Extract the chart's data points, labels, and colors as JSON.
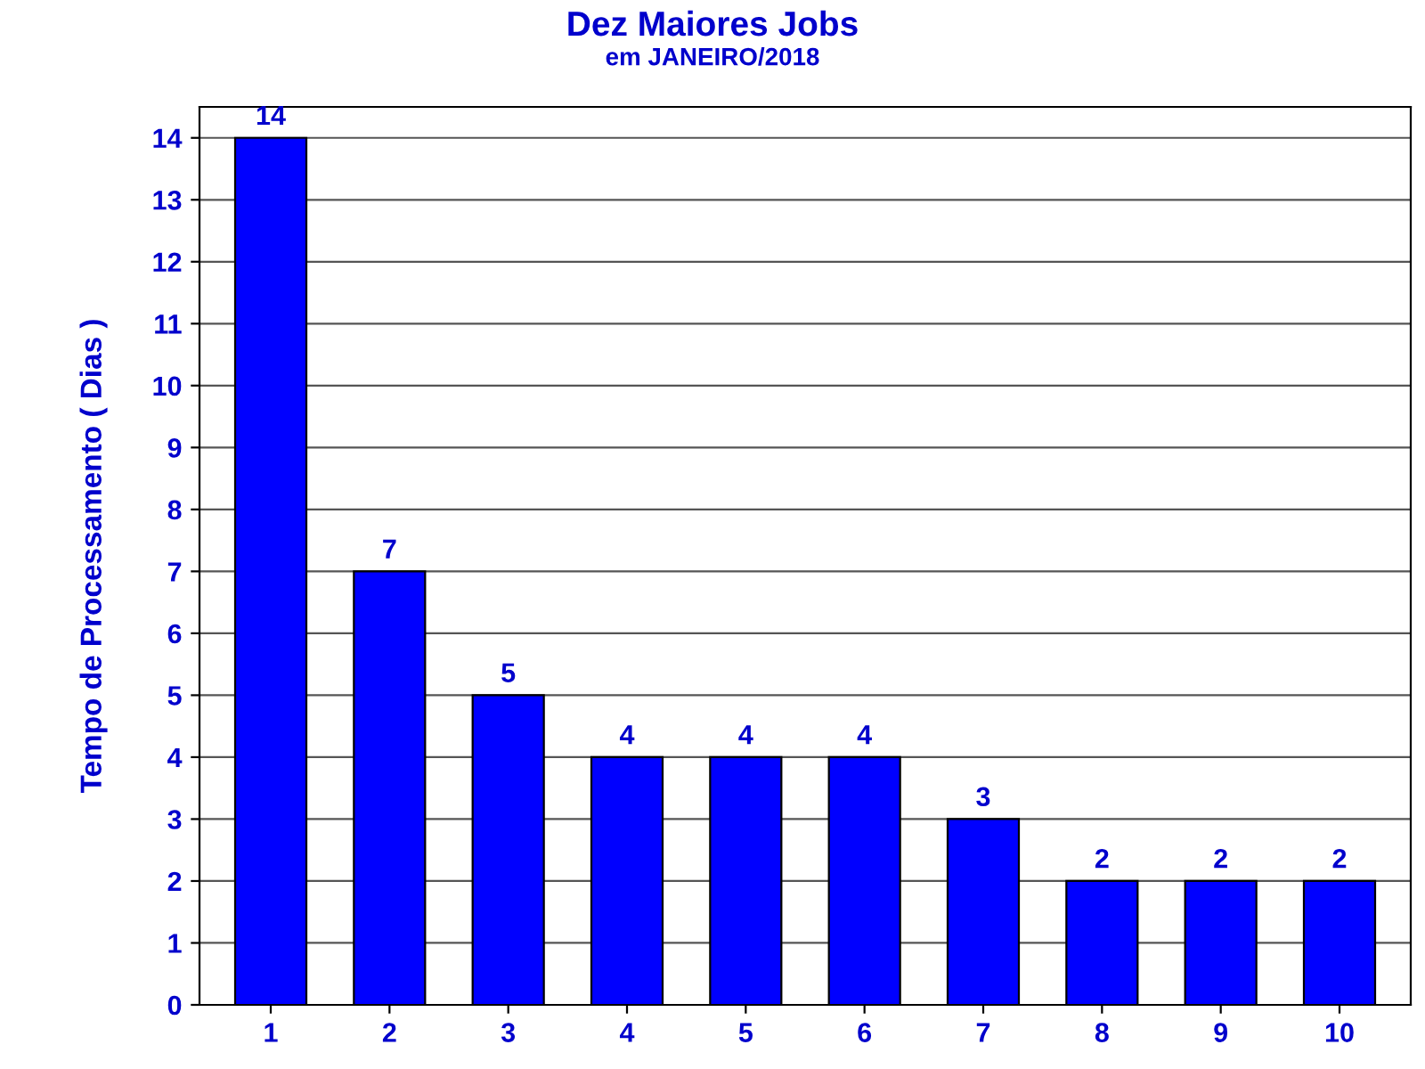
{
  "chart_data": {
    "type": "bar",
    "title": "Dez Maiores Jobs",
    "subtitle": "em JANEIRO/2018",
    "ylabel": "Tempo de Processamento ( Dias )",
    "categories": [
      "1",
      "2",
      "3",
      "4",
      "5",
      "6",
      "7",
      "8",
      "9",
      "10"
    ],
    "values": [
      14,
      7,
      5,
      4,
      4,
      4,
      3,
      2,
      2,
      2
    ],
    "color": "#0000ff",
    "ylim": [
      0,
      14.5
    ],
    "yticks": [
      0,
      1,
      2,
      3,
      4,
      5,
      6,
      7,
      8,
      9,
      10,
      11,
      12,
      13,
      14
    ],
    "grid": "y",
    "data_labels": true
  }
}
